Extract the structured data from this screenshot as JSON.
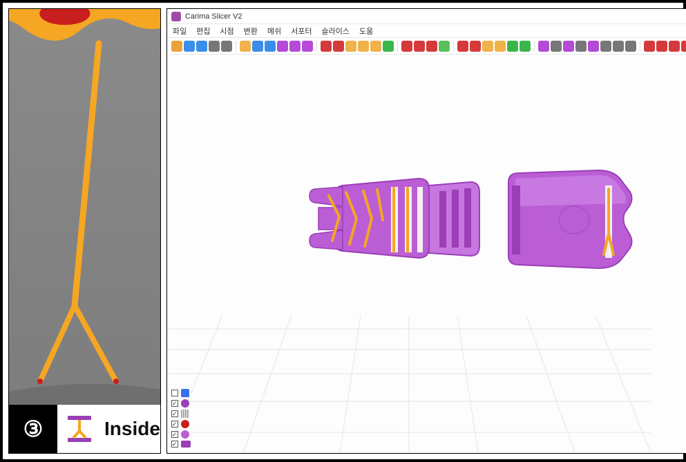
{
  "left": {
    "caption_number": "③",
    "caption_text": "Inside",
    "support_color": "#f5a623",
    "top_blob_colors": {
      "outer": "#f5a623",
      "inner": "#c81e1e"
    },
    "background_color": "#808080",
    "icon_color": "#9b3fb5"
  },
  "app": {
    "title": "Carima Slicer V2",
    "menus": [
      "파일",
      "편집",
      "시점",
      "변환",
      "메쉬",
      "서포터",
      "슬라이스",
      "도움"
    ]
  },
  "toolbar": {
    "icons": [
      {
        "c": "#e9a33a"
      },
      {
        "c": "#3a8ee9"
      },
      {
        "c": "#3a8ee9"
      },
      {
        "c": "#777"
      },
      {
        "c": "#777"
      },
      {
        "sep": true
      },
      {
        "c": "#f0b24a"
      },
      {
        "c": "#3a8ee9"
      },
      {
        "c": "#3a8ee9"
      },
      {
        "c": "#b44ad6"
      },
      {
        "c": "#b44ad6"
      },
      {
        "c": "#b44ad6"
      },
      {
        "sep": true
      },
      {
        "c": "#d43a3a"
      },
      {
        "c": "#d43a3a"
      },
      {
        "c": "#f0b24a"
      },
      {
        "c": "#f0b24a"
      },
      {
        "c": "#f0b24a"
      },
      {
        "c": "#3ab54a"
      },
      {
        "sep": true
      },
      {
        "c": "#d43a3a"
      },
      {
        "c": "#d43a3a"
      },
      {
        "c": "#d43a3a"
      },
      {
        "c": "#5bbf5b"
      },
      {
        "sep": true
      },
      {
        "c": "#d43a3a"
      },
      {
        "c": "#d43a3a"
      },
      {
        "c": "#f0b24a"
      },
      {
        "c": "#f0b24a"
      },
      {
        "c": "#3ab54a"
      },
      {
        "c": "#3ab54a"
      },
      {
        "sep": true
      },
      {
        "c": "#b44ad6"
      },
      {
        "c": "#777"
      },
      {
        "c": "#b44ad6"
      },
      {
        "c": "#777"
      },
      {
        "c": "#b44ad6"
      },
      {
        "c": "#777"
      },
      {
        "c": "#777"
      },
      {
        "c": "#777"
      },
      {
        "sep": true
      },
      {
        "c": "#d43a3a"
      },
      {
        "c": "#d43a3a"
      },
      {
        "c": "#d43a3a"
      },
      {
        "c": "#d43a3a"
      },
      {
        "c": "#d43a3a"
      },
      {
        "sep": true
      },
      {
        "c": "#b44ad6"
      },
      {
        "c": "#3a8ee9"
      },
      {
        "c": "#3a8ee9"
      },
      {
        "c": "#f0b24a"
      },
      {
        "sep": true
      },
      {
        "c": "#777"
      },
      {
        "c": "#555"
      },
      {
        "c": "#aaa"
      }
    ]
  },
  "viewport": {
    "background_color": "#fdfdfd",
    "grid_color": "#e8e8e8",
    "model_color": "#bb5ed6",
    "model_shadow": "#9b3fb5",
    "support_color": "#f5a623"
  },
  "layers": [
    {
      "checked": false,
      "color": "#3a6fe9",
      "shape": "wave"
    },
    {
      "checked": true,
      "color": "#9b3fb5",
      "shape": "heart"
    },
    {
      "checked": true,
      "color": "#808080",
      "shape": "grid"
    },
    {
      "checked": true,
      "color": "#c81e1e",
      "shape": "dot"
    },
    {
      "checked": true,
      "color": "#bb5ed6",
      "shape": "dot"
    },
    {
      "checked": true,
      "color": "#9b3fb5",
      "shape": "support"
    }
  ]
}
